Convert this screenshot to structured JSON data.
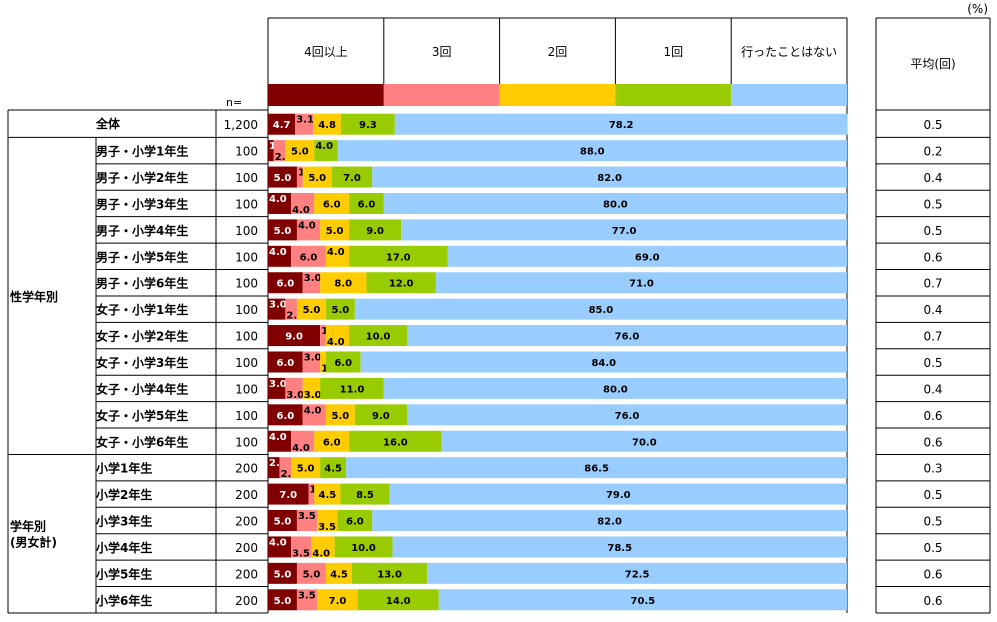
{
  "chart_data": {
    "type": "bar",
    "stacked": true,
    "orientation": "horizontal",
    "percent_unit": "(%)",
    "n_label": "n=",
    "avg_header": "平均(回)",
    "categories_header": [
      "4回以上",
      "3回",
      "2回",
      "1回",
      "行ったことはない"
    ],
    "colors": [
      "#800000",
      "#ff8080",
      "#ffcc00",
      "#99cc00",
      "#99ccff"
    ],
    "groups": [
      {
        "name": "",
        "rows": [
          {
            "label": "全体",
            "n": "1,200",
            "values": [
              4.7,
              3.1,
              4.8,
              9.3,
              78.2
            ],
            "avg": "0.5"
          }
        ]
      },
      {
        "name": "性学年別",
        "rows": [
          {
            "label": "男子・小学1年生",
            "n": "100",
            "values": [
              1.0,
              2.0,
              5.0,
              4.0,
              88.0
            ],
            "avg": "0.2"
          },
          {
            "label": "男子・小学2年生",
            "n": "100",
            "values": [
              5.0,
              1.0,
              5.0,
              7.0,
              82.0
            ],
            "avg": "0.4"
          },
          {
            "label": "男子・小学3年生",
            "n": "100",
            "values": [
              4.0,
              4.0,
              6.0,
              6.0,
              80.0
            ],
            "avg": "0.5"
          },
          {
            "label": "男子・小学4年生",
            "n": "100",
            "values": [
              5.0,
              4.0,
              5.0,
              9.0,
              77.0
            ],
            "avg": "0.5"
          },
          {
            "label": "男子・小学5年生",
            "n": "100",
            "values": [
              4.0,
              6.0,
              4.0,
              17.0,
              69.0
            ],
            "avg": "0.6"
          },
          {
            "label": "男子・小学6年生",
            "n": "100",
            "values": [
              6.0,
              3.0,
              8.0,
              12.0,
              71.0
            ],
            "avg": "0.7"
          },
          {
            "label": "女子・小学1年生",
            "n": "100",
            "values": [
              3.0,
              2.0,
              5.0,
              5.0,
              85.0
            ],
            "avg": "0.4"
          },
          {
            "label": "女子・小学2年生",
            "n": "100",
            "values": [
              9.0,
              1.0,
              4.0,
              10.0,
              76.0
            ],
            "avg": "0.7"
          },
          {
            "label": "女子・小学3年生",
            "n": "100",
            "values": [
              6.0,
              3.0,
              1.0,
              6.0,
              84.0
            ],
            "avg": "0.5"
          },
          {
            "label": "女子・小学4年生",
            "n": "100",
            "values": [
              3.0,
              3.0,
              3.0,
              11.0,
              80.0
            ],
            "avg": "0.4"
          },
          {
            "label": "女子・小学5年生",
            "n": "100",
            "values": [
              6.0,
              4.0,
              5.0,
              9.0,
              76.0
            ],
            "avg": "0.6"
          },
          {
            "label": "女子・小学6年生",
            "n": "100",
            "values": [
              4.0,
              4.0,
              6.0,
              16.0,
              70.0
            ],
            "avg": "0.6"
          }
        ]
      },
      {
        "name": "学年別\n(男女計)",
        "rows": [
          {
            "label": "小学1年生",
            "n": "200",
            "values": [
              2.0,
              2.0,
              5.0,
              4.5,
              86.5
            ],
            "avg": "0.3"
          },
          {
            "label": "小学2年生",
            "n": "200",
            "values": [
              7.0,
              1.0,
              4.5,
              8.5,
              79.0
            ],
            "avg": "0.5"
          },
          {
            "label": "小学3年生",
            "n": "200",
            "values": [
              5.0,
              3.5,
              3.5,
              6.0,
              82.0
            ],
            "avg": "0.5"
          },
          {
            "label": "小学4年生",
            "n": "200",
            "values": [
              4.0,
              3.5,
              4.0,
              10.0,
              78.5
            ],
            "avg": "0.5"
          },
          {
            "label": "小学5年生",
            "n": "200",
            "values": [
              5.0,
              5.0,
              4.5,
              13.0,
              72.5
            ],
            "avg": "0.6"
          },
          {
            "label": "小学6年生",
            "n": "200",
            "values": [
              5.0,
              3.5,
              7.0,
              14.0,
              70.5
            ],
            "avg": "0.6"
          }
        ]
      }
    ]
  }
}
